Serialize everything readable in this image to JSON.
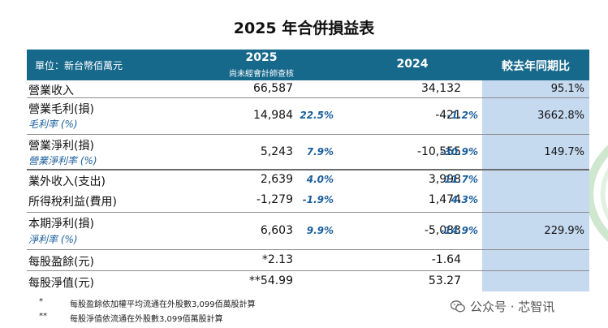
{
  "title": "2025 年合併損益表",
  "header": {
    "unit": "單位：新台幣佰萬元",
    "year1": "2025",
    "year1_note": "尚未經會計師查核",
    "year2": "2024",
    "yoy": "較去年同期比"
  },
  "rows": [
    {
      "label": "營業收入",
      "v2025": "66,587",
      "v2024": "34,132",
      "yoy": "95.1%"
    },
    {
      "label": "營業毛利(損)",
      "sub": "毛利率 (%)",
      "v2025": "14,984",
      "p2025": "22.5%",
      "v2024": "-421",
      "p2024": "-1.2%",
      "yoy": "3662.8%"
    },
    {
      "label": "營業淨利(損)",
      "sub": "營業淨利率 (%)",
      "v2025": "5,243",
      "p2025": "7.9%",
      "v2024": "-10,555",
      "p2024": "-30.9%",
      "yoy": "149.7%"
    },
    {
      "label": "業外收入(支出)",
      "v2025": "2,639",
      "p2025": "4.0%",
      "v2024": "3,998",
      "p2024": "11.7%"
    },
    {
      "label": "所得稅利益(費用)",
      "v2025": "-1,279",
      "p2025": "-1.9%",
      "v2024": "1,474",
      "p2024": "4.3%"
    },
    {
      "label": "本期淨利(損)",
      "sub": "淨利率 (%)",
      "v2025": "6,603",
      "p2025": "9.9%",
      "v2024": "-5,083",
      "p2024": "-14.9%",
      "yoy": "229.9%"
    },
    {
      "label": "每股盈餘(元)",
      "v2025": "*2.13",
      "v2024": "-1.64"
    },
    {
      "label": "每股淨值(元)",
      "v2025": "**54.99",
      "v2024": "53.27"
    }
  ],
  "notes": [
    {
      "mark": "*",
      "text": "每股盈餘依加權平均流通在外股數3,099佰萬股計算"
    },
    {
      "mark": "**",
      "text": "每股淨值依流通在外股數3,099佰萬股計算"
    }
  ],
  "watermark": "公众号 · 芯智讯"
}
